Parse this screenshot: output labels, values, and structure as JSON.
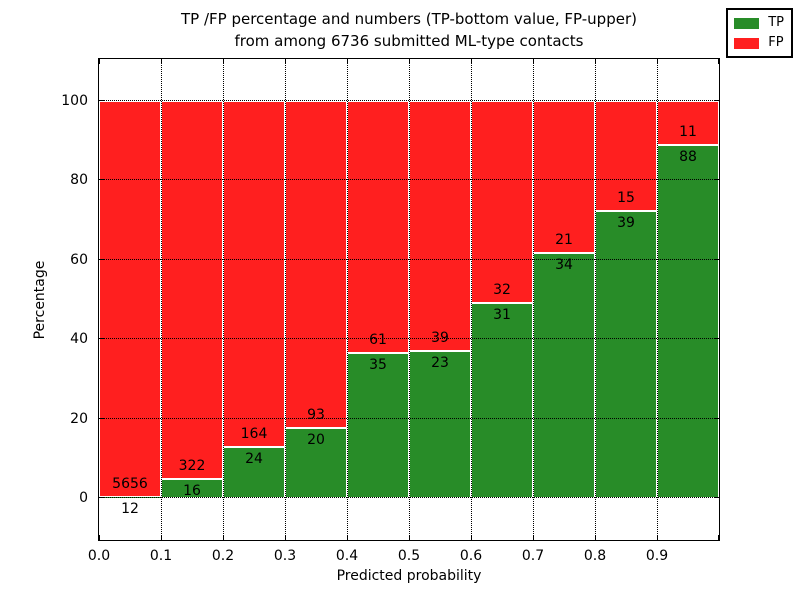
{
  "title": {
    "line1": "TP /FP percentage and numbers (TP-bottom value, FP-upper)",
    "line2": "from among 6736 submitted ML-type contacts"
  },
  "chart_data": {
    "type": "bar",
    "stacked": true,
    "normalized": "each bin stacked to 100%",
    "total_contacts": 6736,
    "bins": [
      "0.0-0.1",
      "0.1-0.2",
      "0.2-0.3",
      "0.3-0.4",
      "0.4-0.5",
      "0.5-0.6",
      "0.6-0.7",
      "0.7-0.8",
      "0.8-0.9",
      "0.9-1.0"
    ],
    "series": [
      {
        "name": "TP",
        "color": "#288c28",
        "values": [
          12,
          16,
          24,
          20,
          35,
          23,
          31,
          34,
          39,
          88
        ]
      },
      {
        "name": "FP",
        "color": "#ff1f1f",
        "values": [
          5656,
          322,
          164,
          93,
          61,
          39,
          32,
          21,
          15,
          11
        ]
      }
    ],
    "xlabel": "Predicted probability",
    "ylabel": "Percentage",
    "x_ticks": [
      "0.0",
      "0.1",
      "0.2",
      "0.3",
      "0.4",
      "0.5",
      "0.6",
      "0.7",
      "0.8",
      "0.9"
    ],
    "y_ticks": [
      0,
      20,
      40,
      60,
      80,
      100
    ],
    "xlim": [
      0.0,
      1.0
    ],
    "ylim_visible": [
      -10.5,
      110.5
    ],
    "grid": "dotted black, horizontal and vertical at ticks",
    "bar_edge_color": "#ffffff",
    "legend": {
      "position": "upper right",
      "entries": [
        {
          "label": "TP",
          "color": "#288c28"
        },
        {
          "label": "FP",
          "color": "#ff1f1f"
        }
      ]
    }
  }
}
